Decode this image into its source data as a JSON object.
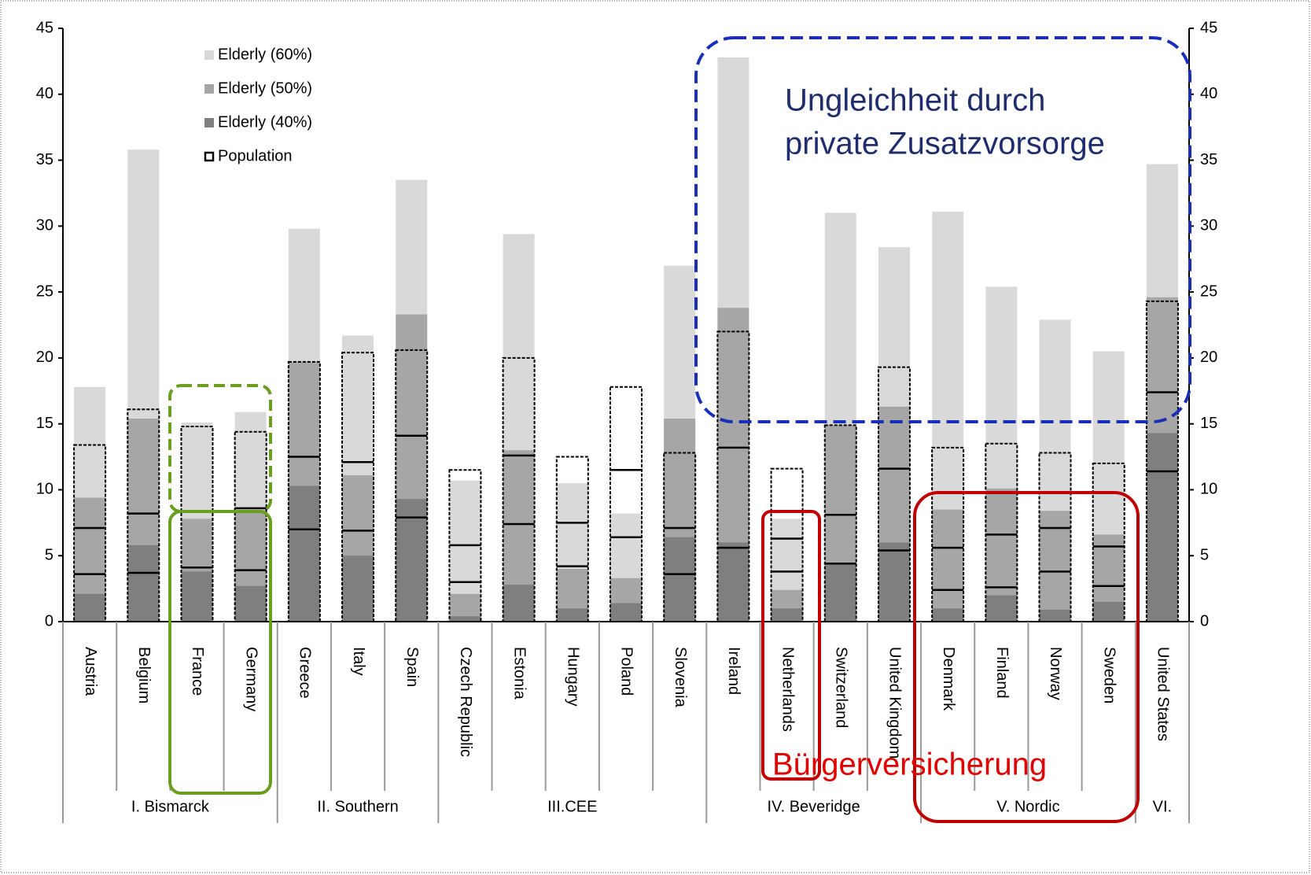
{
  "chart_data": {
    "type": "bar",
    "categories": [
      "Austria",
      "Belgium",
      "France",
      "Germany",
      "Greece",
      "Italy",
      "Spain",
      "Czech Republic",
      "Estonia",
      "Hungary",
      "Poland",
      "Slovenia",
      "Ireland",
      "Netherlands",
      "Switzerland",
      "United Kingdom",
      "Denmark",
      "Finland",
      "Norway",
      "Sweden",
      "United States"
    ],
    "groups": [
      {
        "label": "I. Bismarck",
        "count": 4
      },
      {
        "label": "II. Southern",
        "count": 3
      },
      {
        "label": "III.CEE",
        "count": 5
      },
      {
        "label": "IV. Beveridge",
        "count": 4
      },
      {
        "label": "V. Nordic",
        "count": 4
      },
      {
        "label": "VI.",
        "count": 1
      }
    ],
    "series": [
      {
        "name": "Elderly (60%)",
        "color": "#d9d9d9",
        "values": [
          17.8,
          35.8,
          15.1,
          15.9,
          29.8,
          21.7,
          33.5,
          10.7,
          29.4,
          10.5,
          8.2,
          27.0,
          42.8,
          7.8,
          31.0,
          28.4,
          31.1,
          25.4,
          22.9,
          20.5,
          34.7
        ]
      },
      {
        "name": "Elderly (50%)",
        "color": "#a6a6a6",
        "values": [
          9.4,
          15.4,
          7.8,
          8.5,
          19.7,
          11.1,
          23.3,
          2.1,
          13.0,
          4.0,
          3.3,
          15.4,
          23.8,
          2.4,
          14.9,
          16.3,
          8.5,
          10.1,
          8.4,
          6.6,
          24.6
        ]
      },
      {
        "name": "Elderly (40%)",
        "color": "#7f7f7f",
        "values": [
          2.1,
          5.8,
          3.8,
          2.7,
          10.3,
          5.0,
          9.3,
          0.4,
          2.8,
          1.0,
          1.4,
          6.4,
          6.0,
          1.0,
          4.4,
          6.0,
          1.0,
          2.0,
          0.9,
          1.5,
          14.3
        ]
      }
    ],
    "population": {
      "name": "Population",
      "color": "#000000",
      "values": [
        13.4,
        16.1,
        14.8,
        14.4,
        19.7,
        20.4,
        20.6,
        11.5,
        20.0,
        12.5,
        17.8,
        12.8,
        22.0,
        11.6,
        14.9,
        19.3,
        13.2,
        13.5,
        12.8,
        12.0,
        24.3
      ],
      "lines": [
        [
          7.1,
          8.2,
          4.1,
          8.6,
          12.5,
          12.1,
          14.1,
          5.8,
          12.6,
          7.5,
          11.5,
          7.1,
          13.2,
          6.3,
          8.1,
          11.6,
          5.6,
          6.6,
          7.1,
          5.7,
          17.4
        ],
        [
          3.6,
          3.7,
          null,
          3.9,
          7.0,
          6.9,
          7.9,
          3.0,
          7.4,
          4.2,
          6.4,
          3.6,
          5.6,
          3.8,
          4.4,
          5.4,
          2.4,
          2.6,
          3.8,
          2.7,
          11.4
        ]
      ]
    },
    "ylim": [
      0,
      45
    ],
    "yticks": [
      0,
      5,
      10,
      15,
      20,
      25,
      30,
      35,
      40,
      45
    ],
    "annotations": [
      "Ungleichheit durch",
      "private Zusatzvorsorge",
      "Bürgerversicherung"
    ]
  }
}
